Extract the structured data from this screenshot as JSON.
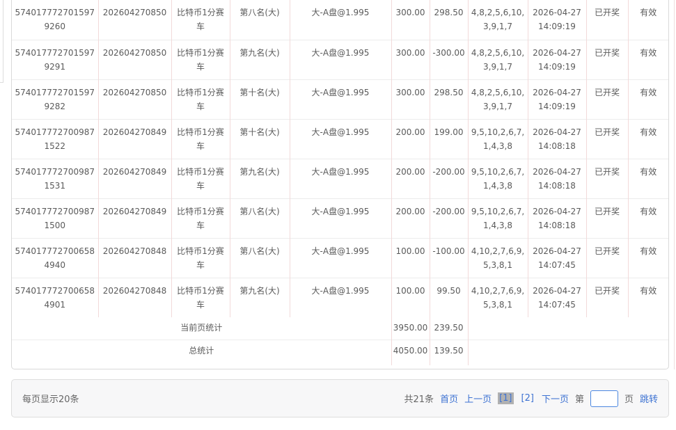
{
  "colors": {
    "link_blue": "#3d72d2",
    "grid_vertical": "#f2dada",
    "grid_horizontal": "#ececec",
    "panel_border": "#d9d9d9",
    "text": "#5a5a5a",
    "active_page_bg": "#b1b1b1",
    "jump_input_border": "#4b87e0",
    "pager_bg": "#f7f7f8"
  },
  "table": {
    "rows": [
      {
        "order_id": "5740177727015979260",
        "period": "202604270850",
        "game": "比特币1分赛车",
        "play": "第八名(大)",
        "content": "大-A盘@1.995",
        "amount": "300.00",
        "win_loss": "298.50",
        "result": "4,8,2,5,6,10,3,9,1,7",
        "time": "2026-04-27 14:09:19",
        "status": "已开奖",
        "validity": "有效"
      },
      {
        "order_id": "5740177727015979291",
        "period": "202604270850",
        "game": "比特币1分赛车",
        "play": "第九名(大)",
        "content": "大-A盘@1.995",
        "amount": "300.00",
        "win_loss": "-300.00",
        "result": "4,8,2,5,6,10,3,9,1,7",
        "time": "2026-04-27 14:09:19",
        "status": "已开奖",
        "validity": "有效"
      },
      {
        "order_id": "5740177727015979282",
        "period": "202604270850",
        "game": "比特币1分赛车",
        "play": "第十名(大)",
        "content": "大-A盘@1.995",
        "amount": "300.00",
        "win_loss": "298.50",
        "result": "4,8,2,5,6,10,3,9,1,7",
        "time": "2026-04-27 14:09:19",
        "status": "已开奖",
        "validity": "有效"
      },
      {
        "order_id": "5740177727009871522",
        "period": "202604270849",
        "game": "比特币1分赛车",
        "play": "第十名(大)",
        "content": "大-A盘@1.995",
        "amount": "200.00",
        "win_loss": "199.00",
        "result": "9,5,10,2,6,7,1,4,3,8",
        "time": "2026-04-27 14:08:18",
        "status": "已开奖",
        "validity": "有效"
      },
      {
        "order_id": "5740177727009871531",
        "period": "202604270849",
        "game": "比特币1分赛车",
        "play": "第九名(大)",
        "content": "大-A盘@1.995",
        "amount": "200.00",
        "win_loss": "-200.00",
        "result": "9,5,10,2,6,7,1,4,3,8",
        "time": "2026-04-27 14:08:18",
        "status": "已开奖",
        "validity": "有效"
      },
      {
        "order_id": "5740177727009871500",
        "period": "202604270849",
        "game": "比特币1分赛车",
        "play": "第八名(大)",
        "content": "大-A盘@1.995",
        "amount": "200.00",
        "win_loss": "-200.00",
        "result": "9,5,10,2,6,7,1,4,3,8",
        "time": "2026-04-27 14:08:18",
        "status": "已开奖",
        "validity": "有效"
      },
      {
        "order_id": "5740177727006584940",
        "period": "202604270848",
        "game": "比特币1分赛车",
        "play": "第八名(大)",
        "content": "大-A盘@1.995",
        "amount": "100.00",
        "win_loss": "-100.00",
        "result": "4,10,2,7,6,9,5,3,8,1",
        "time": "2026-04-27 14:07:45",
        "status": "已开奖",
        "validity": "有效"
      },
      {
        "order_id": "5740177727006584901",
        "period": "202604270848",
        "game": "比特币1分赛车",
        "play": "第九名(大)",
        "content": "大-A盘@1.995",
        "amount": "100.00",
        "win_loss": "99.50",
        "result": "4,10,2,7,6,9,5,3,8,1",
        "time": "2026-04-27 14:07:45",
        "status": "已开奖",
        "validity": "有效"
      }
    ],
    "summaries": {
      "0": {
        "label": "当前页统计",
        "amount": "3950.00",
        "win_loss": "239.50"
      },
      "1": {
        "label": "总统计",
        "amount": "4050.00",
        "win_loss": "139.50"
      }
    }
  },
  "pager": {
    "per_page": "每页显示20条",
    "total": "共21条",
    "first": "首页",
    "prev": "上一页",
    "pages": [
      {
        "label": "[1]",
        "active": true
      },
      {
        "label": "[2]",
        "active": false
      }
    ],
    "next": "下一页",
    "jump_before": "第",
    "jump_after": "页",
    "jump_action": "跳转",
    "jump_value": ""
  }
}
